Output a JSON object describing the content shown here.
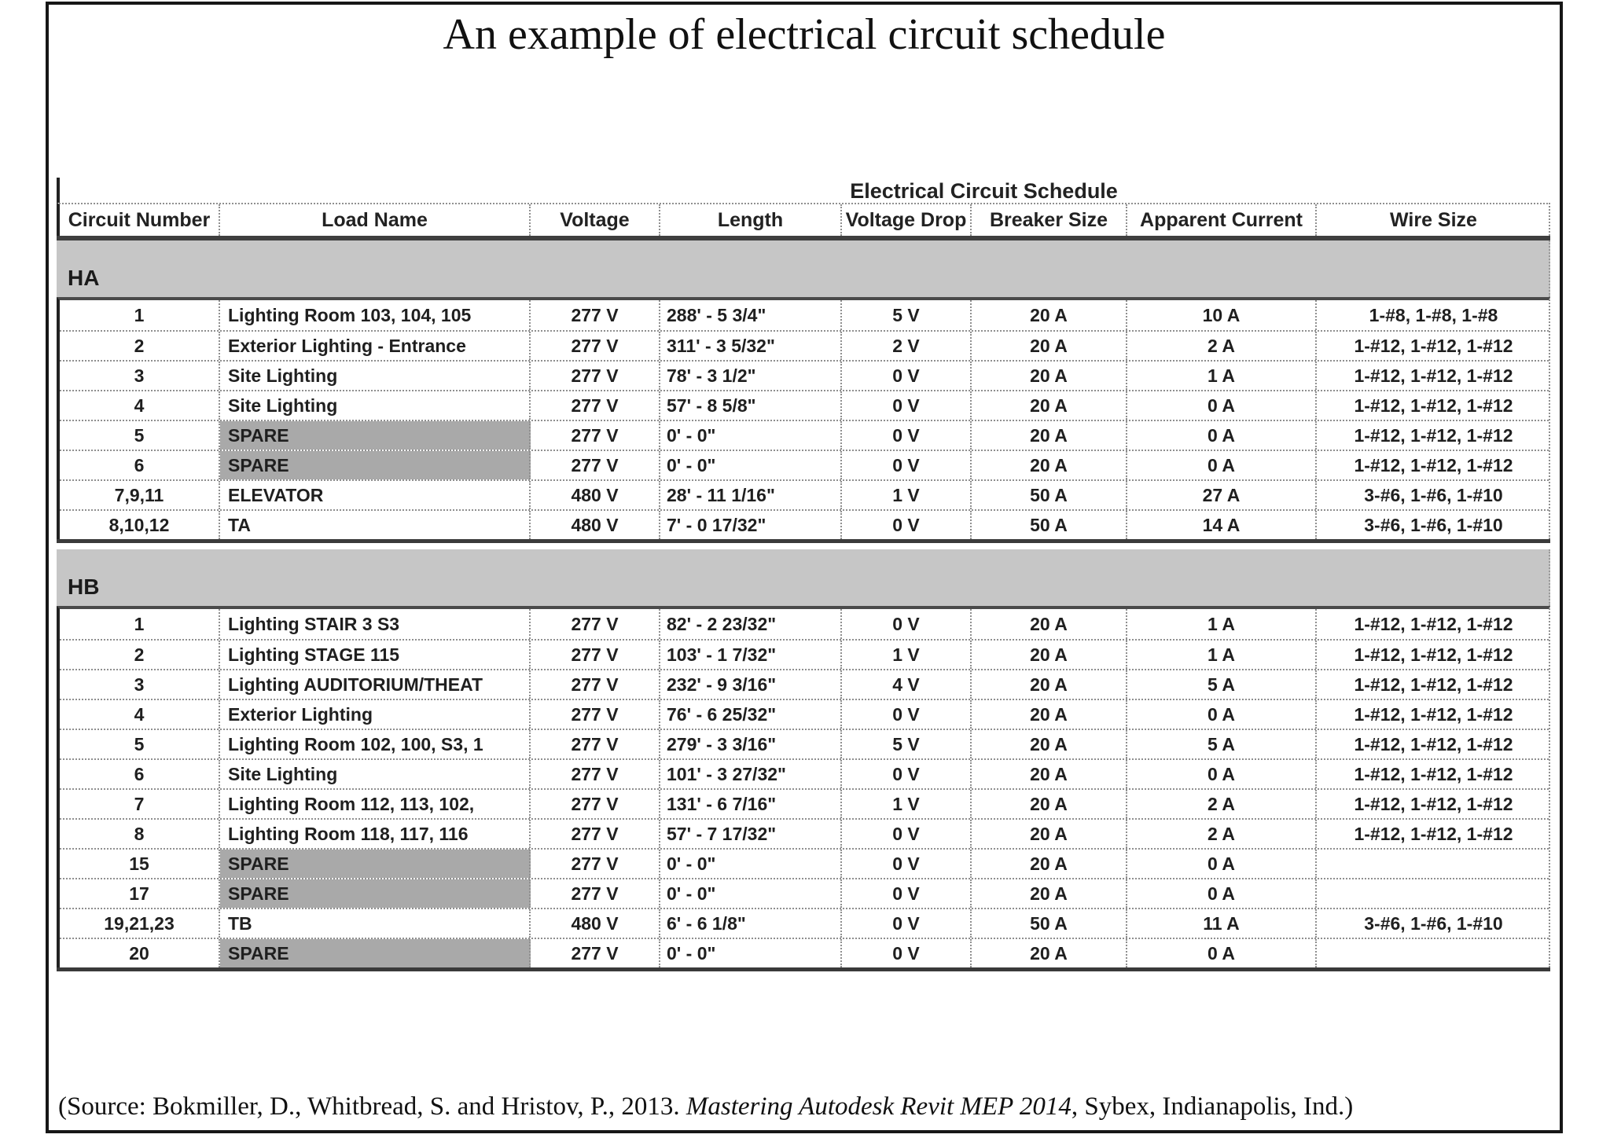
{
  "page": {
    "title": "An example of electrical circuit schedule",
    "source_prefix": "(Source: Bokmiller, D., Whitbread, S. and Hristov, P., 2013. ",
    "source_book": "Mastering Autodesk Revit MEP 2014",
    "source_suffix": ", Sybex, Indianapolis, Ind.)"
  },
  "colors": {
    "section_band_gray": "#c6c6c6",
    "spare_cell_gray": "#a9a9a9",
    "grid_dotted_gray": "#8f8f8f",
    "thick_rule_gray": "#3f3f3f"
  },
  "table": {
    "title": "Electrical Circuit Schedule",
    "columns": [
      "Circuit Number",
      "Load Name",
      "Voltage",
      "Length",
      "Voltage Drop",
      "Breaker Size",
      "Apparent Current",
      "Wire Size"
    ],
    "sections": [
      {
        "name": "HA",
        "rows": [
          {
            "spare": false,
            "cells": [
              "1",
              "Lighting Room 103, 104, 105",
              "277 V",
              "288' - 5 3/4\"",
              "5 V",
              "20 A",
              "10 A",
              "1-#8, 1-#8, 1-#8"
            ]
          },
          {
            "spare": false,
            "cells": [
              "2",
              "Exterior Lighting - Entrance",
              "277 V",
              "311' - 3 5/32\"",
              "2 V",
              "20 A",
              "2 A",
              "1-#12, 1-#12, 1-#12"
            ]
          },
          {
            "spare": false,
            "cells": [
              "3",
              "Site Lighting",
              "277 V",
              "78' - 3 1/2\"",
              "0 V",
              "20 A",
              "1 A",
              "1-#12, 1-#12, 1-#12"
            ]
          },
          {
            "spare": false,
            "cells": [
              "4",
              "Site Lighting",
              "277 V",
              "57' - 8 5/8\"",
              "0 V",
              "20 A",
              "0 A",
              "1-#12, 1-#12, 1-#12"
            ]
          },
          {
            "spare": true,
            "cells": [
              "5",
              "SPARE",
              "277 V",
              "0' - 0\"",
              "0 V",
              "20 A",
              "0 A",
              "1-#12, 1-#12, 1-#12"
            ]
          },
          {
            "spare": true,
            "cells": [
              "6",
              "SPARE",
              "277 V",
              "0' - 0\"",
              "0 V",
              "20 A",
              "0 A",
              "1-#12, 1-#12, 1-#12"
            ]
          },
          {
            "spare": false,
            "cells": [
              "7,9,11",
              "ELEVATOR",
              "480 V",
              "28' - 11 1/16\"",
              "1 V",
              "50 A",
              "27 A",
              "3-#6, 1-#6, 1-#10"
            ]
          },
          {
            "spare": false,
            "cells": [
              "8,10,12",
              "TA",
              "480 V",
              "7' - 0 17/32\"",
              "0 V",
              "50 A",
              "14 A",
              "3-#6, 1-#6, 1-#10"
            ]
          }
        ]
      },
      {
        "name": "HB",
        "rows": [
          {
            "spare": false,
            "cells": [
              "1",
              "Lighting STAIR 3 S3",
              "277 V",
              "82' - 2 23/32\"",
              "0 V",
              "20 A",
              "1 A",
              "1-#12, 1-#12, 1-#12"
            ]
          },
          {
            "spare": false,
            "cells": [
              "2",
              "Lighting STAGE 115",
              "277 V",
              "103' - 1 7/32\"",
              "1 V",
              "20 A",
              "1 A",
              "1-#12, 1-#12, 1-#12"
            ]
          },
          {
            "spare": false,
            "cells": [
              "3",
              "Lighting AUDITORIUM/THEAT",
              "277 V",
              "232' - 9 3/16\"",
              "4 V",
              "20 A",
              "5 A",
              "1-#12, 1-#12, 1-#12"
            ]
          },
          {
            "spare": false,
            "cells": [
              "4",
              "Exterior Lighting",
              "277 V",
              "76' - 6 25/32\"",
              "0 V",
              "20 A",
              "0 A",
              "1-#12, 1-#12, 1-#12"
            ]
          },
          {
            "spare": false,
            "cells": [
              "5",
              "Lighting Room 102, 100, S3, 1",
              "277 V",
              "279' - 3 3/16\"",
              "5 V",
              "20 A",
              "5 A",
              "1-#12, 1-#12, 1-#12"
            ]
          },
          {
            "spare": false,
            "cells": [
              "6",
              "Site Lighting",
              "277 V",
              "101' - 3 27/32\"",
              "0 V",
              "20 A",
              "0 A",
              "1-#12, 1-#12, 1-#12"
            ]
          },
          {
            "spare": false,
            "cells": [
              "7",
              "Lighting Room 112, 113, 102,",
              "277 V",
              "131' - 6 7/16\"",
              "1 V",
              "20 A",
              "2 A",
              "1-#12, 1-#12, 1-#12"
            ]
          },
          {
            "spare": false,
            "cells": [
              "8",
              "Lighting Room 118, 117, 116",
              "277 V",
              "57' - 7 17/32\"",
              "0 V",
              "20 A",
              "2 A",
              "1-#12, 1-#12, 1-#12"
            ]
          },
          {
            "spare": true,
            "cells": [
              "15",
              "SPARE",
              "277 V",
              "0' - 0\"",
              "0 V",
              "20 A",
              "0 A",
              ""
            ]
          },
          {
            "spare": true,
            "cells": [
              "17",
              "SPARE",
              "277 V",
              "0' - 0\"",
              "0 V",
              "20 A",
              "0 A",
              ""
            ]
          },
          {
            "spare": false,
            "cells": [
              "19,21,23",
              "TB",
              "480 V",
              "6' - 6 1/8\"",
              "0 V",
              "50 A",
              "11 A",
              "3-#6, 1-#6, 1-#10"
            ]
          },
          {
            "spare": true,
            "cells": [
              "20",
              "SPARE",
              "277 V",
              "0' - 0\"",
              "0 V",
              "20 A",
              "0 A",
              ""
            ]
          }
        ]
      }
    ]
  }
}
